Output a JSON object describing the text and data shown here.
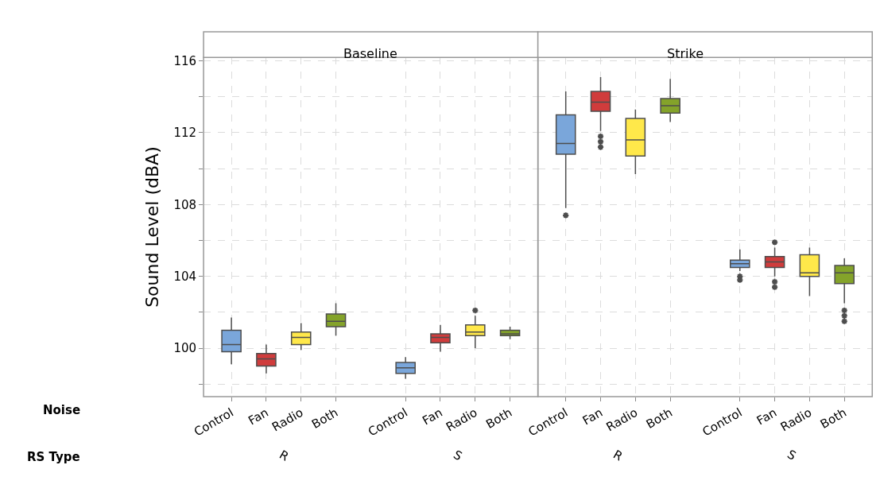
{
  "chart_data": [
    {
      "type": "box",
      "title": "Baseline",
      "ylabel": "Sound Level (dBA)",
      "categories": [
        "Control",
        "Fan",
        "Radio",
        "Both",
        null,
        "Control",
        "Fan",
        "Radio",
        "Both"
      ],
      "colors": [
        "#7aa6da",
        "#d03c3c",
        "#ffe84a",
        "#84a32a",
        null,
        "#7aa6da",
        "#d03c3c",
        "#ffe84a",
        "#84a32a"
      ],
      "boxes": [
        {
          "low": 99.1,
          "q1": 99.8,
          "median": 100.2,
          "q3": 101.0,
          "high": 101.7
        },
        {
          "low": 98.6,
          "q1": 99.0,
          "median": 99.4,
          "q3": 99.7,
          "high": 100.2
        },
        {
          "low": 99.9,
          "q1": 100.2,
          "median": 100.6,
          "q3": 100.9,
          "high": 101.4
        },
        {
          "low": 100.7,
          "q1": 101.2,
          "median": 101.5,
          "q3": 101.9,
          "high": 102.5
        },
        null,
        {
          "low": 98.3,
          "q1": 98.6,
          "median": 98.9,
          "q3": 99.2,
          "high": 99.5
        },
        {
          "low": 99.8,
          "q1": 100.3,
          "median": 100.6,
          "q3": 100.8,
          "high": 101.3
        },
        {
          "low": 100.0,
          "q1": 100.7,
          "median": 100.9,
          "q3": 101.3,
          "high": 101.8,
          "outliers": [
            102.1
          ]
        },
        {
          "low": 100.5,
          "q1": 100.7,
          "median": 100.8,
          "q3": 101.0,
          "high": 101.2
        }
      ],
      "ylim": [
        97.3,
        116.2
      ],
      "yticks": [
        {
          "value": 98,
          "label": null
        },
        100,
        {
          "value": 102,
          "label": null
        },
        104,
        {
          "value": 106,
          "label": null
        },
        108,
        {
          "value": 110,
          "label": null
        },
        112,
        {
          "value": 114,
          "label": null
        },
        116
      ],
      "grid": true,
      "marker": "cross",
      "annotations": [
        "Noise",
        "RS Type",
        "R",
        "S"
      ]
    },
    {
      "type": "box",
      "title": "Strike",
      "categories": [
        "Control",
        "Fan",
        "Radio",
        "Both",
        null,
        "Control",
        "Fan",
        "Radio",
        "Both"
      ],
      "colors": [
        "#7aa6da",
        "#d03c3c",
        "#ffe84a",
        "#84a32a",
        null,
        "#7aa6da",
        "#d03c3c",
        "#ffe84a",
        "#84a32a"
      ],
      "boxes": [
        {
          "low": 107.8,
          "q1": 110.8,
          "median": 111.4,
          "q3": 113.0,
          "high": 114.3,
          "outliers": [
            107.4
          ]
        },
        {
          "low": 112.1,
          "q1": 113.2,
          "median": 113.7,
          "q3": 114.3,
          "high": 115.1,
          "outliers": [
            111.8,
            111.5,
            111.2
          ]
        },
        {
          "low": 109.7,
          "q1": 110.7,
          "median": 111.6,
          "q3": 112.8,
          "high": 113.3
        },
        {
          "low": 112.6,
          "q1": 113.1,
          "median": 113.5,
          "q3": 113.9,
          "high": 115.0
        },
        null,
        {
          "low": 104.3,
          "q1": 104.5,
          "median": 104.7,
          "q3": 104.9,
          "high": 105.5,
          "outliers": [
            104.0,
            103.8
          ]
        },
        {
          "low": 104.0,
          "q1": 104.5,
          "median": 104.8,
          "q3": 105.1,
          "high": 105.6,
          "outliers": [
            105.9,
            103.7,
            103.4
          ]
        },
        {
          "low": 102.9,
          "q1": 104.0,
          "median": 104.2,
          "q3": 105.2,
          "high": 105.6
        },
        {
          "low": 102.5,
          "q1": 103.6,
          "median": 104.2,
          "q3": 104.6,
          "high": 105.0,
          "outliers": [
            102.1,
            101.8,
            101.5
          ]
        }
      ],
      "ylim": [
        97.3,
        116.2
      ],
      "yticks": [
        {
          "value": 98,
          "label": null
        },
        100,
        {
          "value": 102,
          "label": null
        },
        104,
        {
          "value": 106,
          "label": null
        },
        108,
        {
          "value": 110,
          "label": null
        },
        112,
        {
          "value": 114,
          "label": null
        },
        116
      ],
      "grid": true,
      "marker": "cross",
      "tick_labels": "x",
      "annotations": [
        "R",
        "S"
      ]
    }
  ]
}
